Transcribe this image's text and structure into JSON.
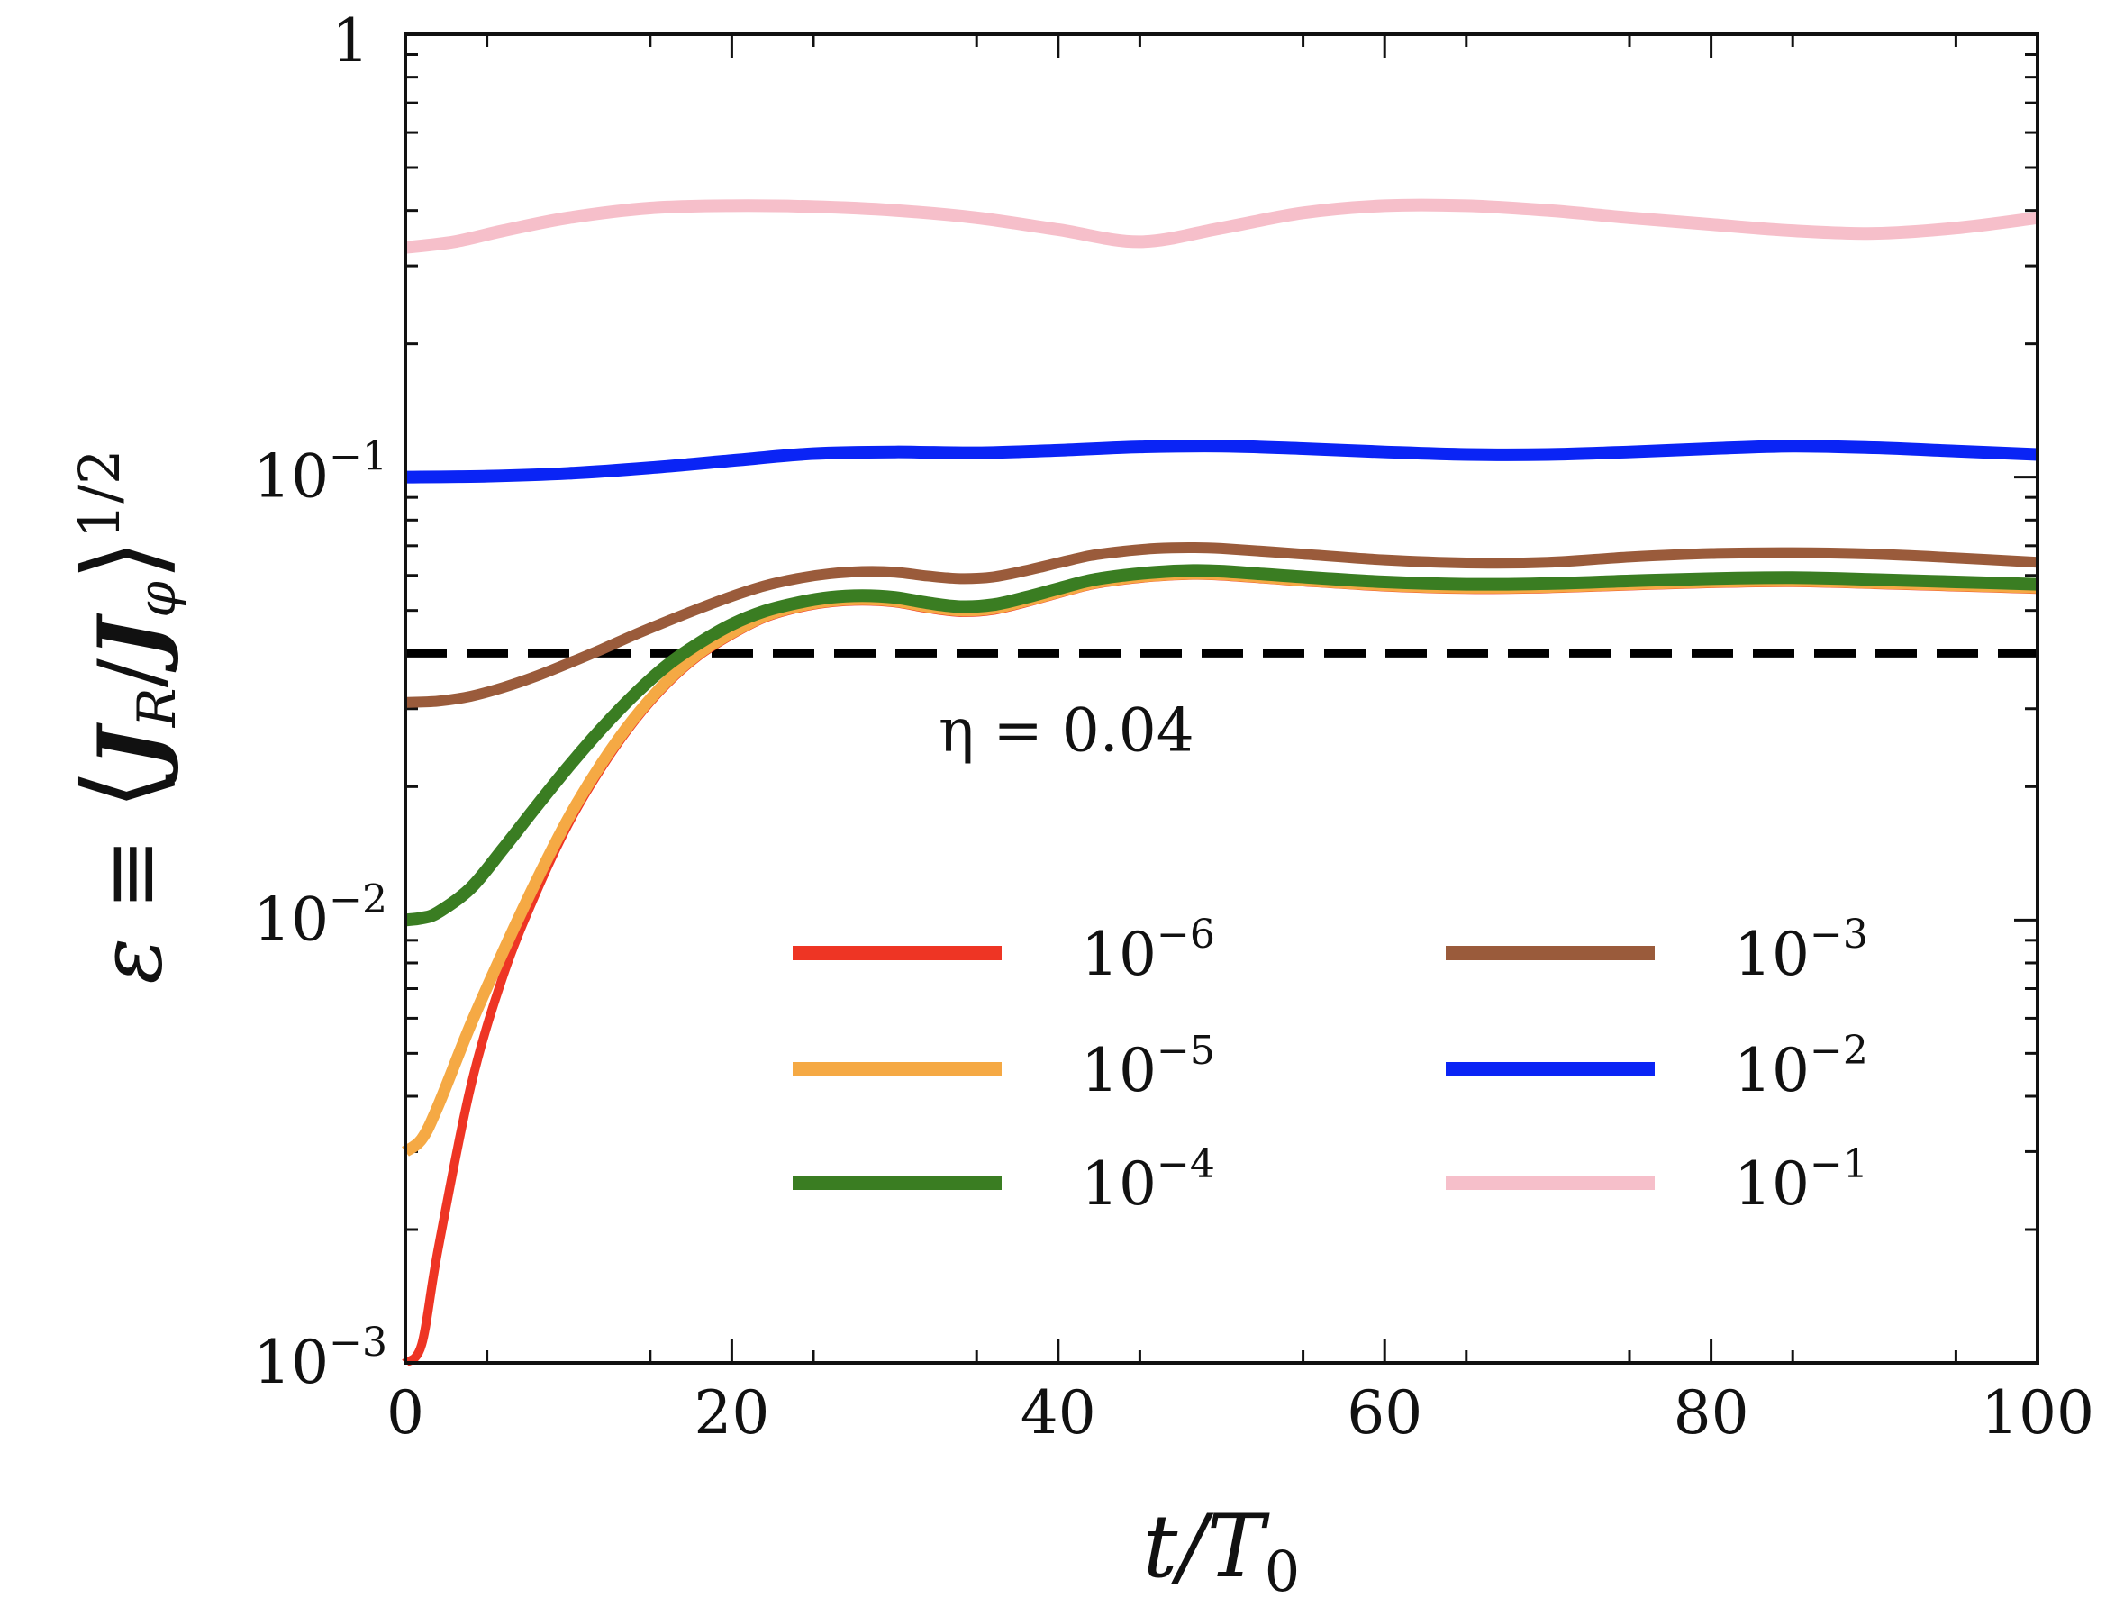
{
  "chart_data": {
    "type": "line",
    "title": "",
    "xlabel": "t/T",
    "xlabel_sub": "0",
    "ylabel_prefix": "ε ≡",
    "ylabel_inner": "J",
    "ylabel_sub_R": "R",
    "ylabel_slash": "/",
    "ylabel_inner2": "J",
    "ylabel_sub_phi": "φ",
    "ylabel_exp": "1/2",
    "xlim": [
      0,
      100
    ],
    "ylim": [
      0.001,
      1
    ],
    "yscale": "log",
    "x_ticks": [
      0,
      20,
      40,
      60,
      80,
      100
    ],
    "x_tick_labels": [
      "0",
      "20",
      "40",
      "60",
      "80",
      "100"
    ],
    "y_ticks": [
      {
        "value": 1,
        "base": "1",
        "exp": ""
      },
      {
        "value": 0.1,
        "base": "10",
        "exp": "−1"
      },
      {
        "value": 0.01,
        "base": "10",
        "exp": "−2"
      },
      {
        "value": 0.001,
        "base": "10",
        "exp": "−3"
      }
    ],
    "reference_line": {
      "y": 0.04,
      "label": "η = 0.04",
      "color": "#000000"
    },
    "legend_position": "lower-right",
    "series": [
      {
        "name": "1e-6",
        "label_base": "10",
        "label_exp": "−6",
        "color": "#ee3524",
        "x": [
          0,
          1,
          2,
          4,
          6,
          8,
          10,
          12,
          14,
          16,
          18,
          20,
          22,
          24,
          26,
          28,
          30,
          32,
          34,
          36,
          38,
          40,
          42,
          44,
          46,
          48,
          50,
          55,
          60,
          65,
          70,
          75,
          80,
          85,
          90,
          95,
          100
        ],
        "y": [
          0.001,
          0.0011,
          0.0018,
          0.0042,
          0.0075,
          0.0115,
          0.0165,
          0.022,
          0.028,
          0.034,
          0.0395,
          0.044,
          0.048,
          0.0505,
          0.052,
          0.0525,
          0.052,
          0.0505,
          0.0495,
          0.05,
          0.052,
          0.0545,
          0.057,
          0.0585,
          0.0595,
          0.06,
          0.0598,
          0.058,
          0.0565,
          0.0558,
          0.056,
          0.0568,
          0.0575,
          0.0578,
          0.0572,
          0.0565,
          0.0558
        ]
      },
      {
        "name": "1e-5",
        "label_base": "10",
        "label_exp": "−5",
        "color": "#f5a944",
        "x": [
          0,
          1,
          2,
          4,
          6,
          8,
          10,
          12,
          14,
          16,
          18,
          20,
          22,
          24,
          26,
          28,
          30,
          32,
          34,
          36,
          38,
          40,
          42,
          44,
          46,
          48,
          50,
          55,
          60,
          65,
          70,
          75,
          80,
          85,
          90,
          95,
          100
        ],
        "y": [
          0.003,
          0.0032,
          0.0038,
          0.0058,
          0.0085,
          0.0122,
          0.017,
          0.0225,
          0.0285,
          0.0345,
          0.04,
          0.0445,
          0.0485,
          0.051,
          0.0525,
          0.053,
          0.0525,
          0.051,
          0.05,
          0.0505,
          0.0525,
          0.055,
          0.0575,
          0.059,
          0.06,
          0.0605,
          0.0603,
          0.0585,
          0.057,
          0.0563,
          0.0565,
          0.0573,
          0.058,
          0.0583,
          0.0577,
          0.057,
          0.0563
        ]
      },
      {
        "name": "1e-4",
        "label_base": "10",
        "label_exp": "−4",
        "color": "#3a7d22",
        "x": [
          0,
          1,
          2,
          4,
          6,
          8,
          10,
          12,
          14,
          16,
          18,
          20,
          22,
          24,
          26,
          28,
          30,
          32,
          34,
          36,
          38,
          40,
          42,
          44,
          46,
          48,
          50,
          55,
          60,
          65,
          70,
          75,
          80,
          85,
          90,
          95,
          100
        ],
        "y": [
          0.01,
          0.0101,
          0.0104,
          0.0118,
          0.0145,
          0.018,
          0.0222,
          0.027,
          0.0322,
          0.0375,
          0.0422,
          0.0465,
          0.0498,
          0.052,
          0.0535,
          0.054,
          0.0535,
          0.052,
          0.051,
          0.0515,
          0.0535,
          0.056,
          0.0585,
          0.06,
          0.061,
          0.0615,
          0.0613,
          0.0595,
          0.058,
          0.0573,
          0.0575,
          0.0583,
          0.059,
          0.0593,
          0.0587,
          0.058,
          0.0573
        ]
      },
      {
        "name": "1e-3",
        "label_base": "10",
        "label_exp": "−3",
        "color": "#9a5b3b",
        "x": [
          0,
          2,
          4,
          6,
          8,
          10,
          12,
          14,
          16,
          18,
          20,
          22,
          24,
          26,
          28,
          30,
          32,
          34,
          36,
          38,
          40,
          42,
          44,
          46,
          48,
          50,
          55,
          60,
          65,
          70,
          75,
          80,
          85,
          90,
          95,
          100
        ],
        "y": [
          0.031,
          0.0312,
          0.032,
          0.0335,
          0.0355,
          0.038,
          0.0408,
          0.044,
          0.0472,
          0.0505,
          0.0538,
          0.0568,
          0.059,
          0.0605,
          0.0612,
          0.061,
          0.0598,
          0.059,
          0.0595,
          0.0615,
          0.064,
          0.0665,
          0.068,
          0.069,
          0.0693,
          0.069,
          0.067,
          0.065,
          0.064,
          0.0642,
          0.066,
          0.0672,
          0.0675,
          0.067,
          0.0657,
          0.0642
        ]
      },
      {
        "name": "1e-2",
        "label_base": "10",
        "label_exp": "−2",
        "color": "#0a24f5",
        "x": [
          0,
          5,
          10,
          15,
          20,
          25,
          30,
          35,
          40,
          45,
          50,
          55,
          60,
          65,
          70,
          75,
          80,
          85,
          90,
          95,
          100
        ],
        "y": [
          0.1,
          0.1005,
          0.102,
          0.105,
          0.109,
          0.113,
          0.114,
          0.1135,
          0.115,
          0.117,
          0.1175,
          0.116,
          0.114,
          0.1125,
          0.1125,
          0.114,
          0.116,
          0.1175,
          0.1165,
          0.1145,
          0.1125
        ]
      },
      {
        "name": "1e-1",
        "label_base": "10",
        "label_exp": "−1",
        "color": "#f6bfca",
        "x": [
          0,
          3,
          6,
          10,
          15,
          20,
          25,
          30,
          35,
          40,
          45,
          50,
          55,
          60,
          65,
          70,
          75,
          80,
          85,
          90,
          95,
          100
        ],
        "y": [
          0.33,
          0.34,
          0.36,
          0.385,
          0.405,
          0.41,
          0.408,
          0.4,
          0.385,
          0.362,
          0.34,
          0.365,
          0.395,
          0.41,
          0.41,
          0.4,
          0.385,
          0.372,
          0.36,
          0.355,
          0.365,
          0.385
        ]
      }
    ]
  }
}
